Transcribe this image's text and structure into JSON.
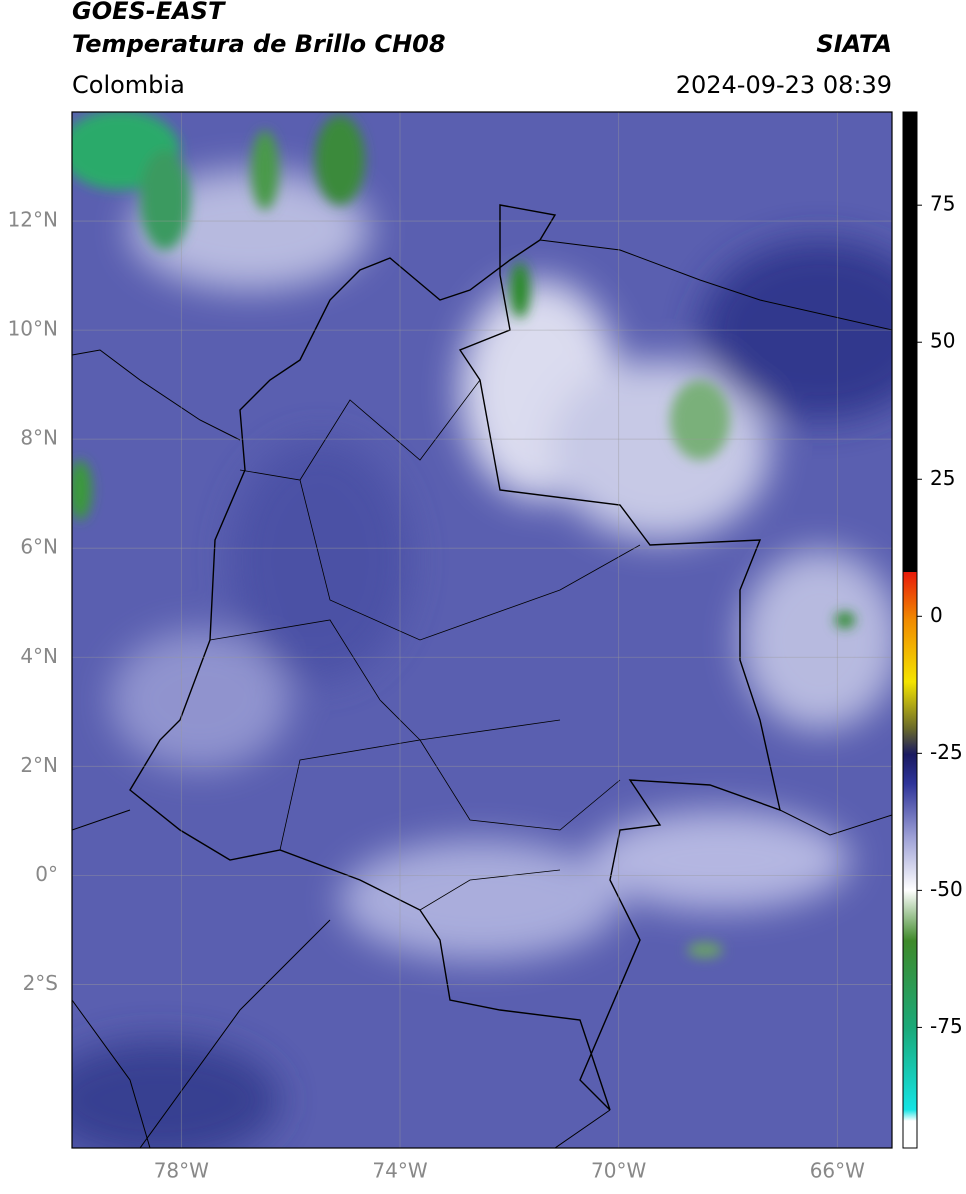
{
  "header": {
    "title": "GOES-EAST",
    "subtitle": "Temperatura de Brillo CH08",
    "source": "SIATA",
    "region": "Colombia",
    "timestamp": "2024-09-23 08:39"
  },
  "map": {
    "xlim": [
      -80,
      -65
    ],
    "ylim": [
      -5,
      14
    ],
    "xticks": [
      {
        "value": -78,
        "label": "78°W"
      },
      {
        "value": -74,
        "label": "74°W"
      },
      {
        "value": -70,
        "label": "70°W"
      },
      {
        "value": -66,
        "label": "66°W"
      }
    ],
    "yticks": [
      {
        "value": 12,
        "label": "12°N"
      },
      {
        "value": 10,
        "label": "10°N"
      },
      {
        "value": 8,
        "label": "8°N"
      },
      {
        "value": 6,
        "label": "6°N"
      },
      {
        "value": 4,
        "label": "4°N"
      },
      {
        "value": 2,
        "label": "2°N"
      },
      {
        "value": 0,
        "label": "0°"
      },
      {
        "value": -2,
        "label": "2°S"
      }
    ],
    "grid": true
  },
  "colorbar": {
    "clim": [
      -97,
      92
    ],
    "ticks": [
      75,
      50,
      25,
      0,
      -25,
      -50,
      -75
    ]
  }
}
